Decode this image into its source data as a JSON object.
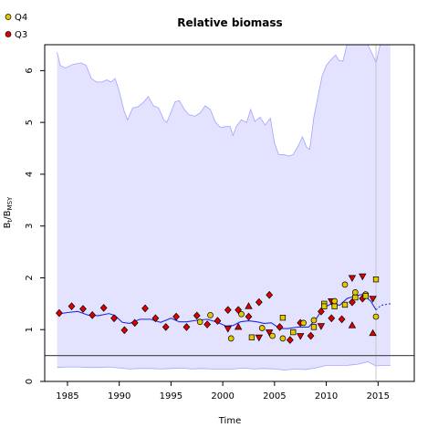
{
  "chart_data": {
    "type": "scatter",
    "title": "Relative biomass",
    "xlabel": "Time",
    "ylabel_main": "B",
    "ylabel_sub_num": "t",
    "ylabel_slash": "/B",
    "ylabel_sub_den": "MSY",
    "xlim": [
      1982.8,
      2018.5
    ],
    "ylim": [
      0,
      6.5
    ],
    "x_ticks": [
      1985,
      1990,
      1995,
      2000,
      2005,
      2010,
      2015
    ],
    "y_ticks": [
      0,
      1,
      2,
      3,
      4,
      5,
      6
    ],
    "grid": false,
    "legend_position": "top-left",
    "reference_line_y": 0.5,
    "vertical_line_x": 2014.8,
    "colors": {
      "band": "#e3e3ff",
      "band_edge": "#9fa3ff",
      "median": "#1f29e8",
      "ref_line": "#555555",
      "vline": "#c8c8c8",
      "q3": "#e00000",
      "q4": "#e6c700"
    },
    "upper_band": [
      [
        1984.0,
        6.35
      ],
      [
        1984.3,
        6.1
      ],
      [
        1984.8,
        6.05
      ],
      [
        1985.5,
        6.12
      ],
      [
        1986.3,
        6.15
      ],
      [
        1986.8,
        6.1
      ],
      [
        1987.3,
        5.85
      ],
      [
        1987.8,
        5.78
      ],
      [
        1988.3,
        5.78
      ],
      [
        1988.8,
        5.82
      ],
      [
        1989.2,
        5.78
      ],
      [
        1989.6,
        5.85
      ],
      [
        1990.0,
        5.6
      ],
      [
        1990.5,
        5.2
      ],
      [
        1990.8,
        5.05
      ],
      [
        1991.3,
        5.28
      ],
      [
        1991.8,
        5.3
      ],
      [
        1992.3,
        5.38
      ],
      [
        1992.8,
        5.5
      ],
      [
        1993.3,
        5.32
      ],
      [
        1993.8,
        5.28
      ],
      [
        1994.3,
        5.05
      ],
      [
        1994.6,
        5.0
      ],
      [
        1995.0,
        5.2
      ],
      [
        1995.4,
        5.4
      ],
      [
        1995.8,
        5.42
      ],
      [
        1996.3,
        5.25
      ],
      [
        1996.7,
        5.15
      ],
      [
        1997.3,
        5.12
      ],
      [
        1997.8,
        5.18
      ],
      [
        1998.3,
        5.32
      ],
      [
        1998.8,
        5.25
      ],
      [
        1999.3,
        5.0
      ],
      [
        1999.8,
        4.9
      ],
      [
        2000.3,
        4.92
      ],
      [
        2000.7,
        4.92
      ],
      [
        2001.0,
        4.75
      ],
      [
        2001.3,
        4.92
      ],
      [
        2001.8,
        5.05
      ],
      [
        2002.3,
        5.0
      ],
      [
        2002.7,
        5.25
      ],
      [
        2003.1,
        5.02
      ],
      [
        2003.6,
        5.1
      ],
      [
        2004.1,
        4.95
      ],
      [
        2004.6,
        5.08
      ],
      [
        2005.0,
        4.6
      ],
      [
        2005.4,
        4.38
      ],
      [
        2005.9,
        4.38
      ],
      [
        2006.4,
        4.35
      ],
      [
        2006.8,
        4.38
      ],
      [
        2007.3,
        4.55
      ],
      [
        2007.7,
        4.72
      ],
      [
        2008.1,
        4.52
      ],
      [
        2008.4,
        4.48
      ],
      [
        2008.8,
        5.1
      ],
      [
        2009.2,
        5.5
      ],
      [
        2009.6,
        5.9
      ],
      [
        2010.0,
        6.1
      ],
      [
        2010.5,
        6.22
      ],
      [
        2010.9,
        6.3
      ],
      [
        2011.2,
        6.2
      ],
      [
        2011.6,
        6.18
      ],
      [
        2012.0,
        6.5
      ],
      [
        2012.5,
        6.5
      ],
      [
        2013.0,
        6.5
      ],
      [
        2013.5,
        6.5
      ],
      [
        2014.0,
        6.5
      ],
      [
        2014.5,
        6.3
      ],
      [
        2014.8,
        6.15
      ],
      [
        2015.2,
        6.5
      ],
      [
        2016.2,
        6.5
      ]
    ],
    "lower_band": [
      [
        1984.0,
        0.27
      ],
      [
        1985.0,
        0.28
      ],
      [
        1986.0,
        0.28
      ],
      [
        1987.0,
        0.27
      ],
      [
        1988.0,
        0.27
      ],
      [
        1989.0,
        0.28
      ],
      [
        1990.0,
        0.26
      ],
      [
        1991.0,
        0.24
      ],
      [
        1992.0,
        0.25
      ],
      [
        1993.0,
        0.25
      ],
      [
        1994.0,
        0.24
      ],
      [
        1995.0,
        0.25
      ],
      [
        1996.0,
        0.26
      ],
      [
        1997.0,
        0.24
      ],
      [
        1998.0,
        0.25
      ],
      [
        1999.0,
        0.24
      ],
      [
        2000.0,
        0.24
      ],
      [
        2001.0,
        0.24
      ],
      [
        2002.0,
        0.26
      ],
      [
        2003.0,
        0.24
      ],
      [
        2004.0,
        0.25
      ],
      [
        2005.0,
        0.24
      ],
      [
        2006.0,
        0.22
      ],
      [
        2007.0,
        0.24
      ],
      [
        2008.0,
        0.23
      ],
      [
        2009.0,
        0.26
      ],
      [
        2010.0,
        0.31
      ],
      [
        2011.0,
        0.31
      ],
      [
        2012.0,
        0.31
      ],
      [
        2013.0,
        0.33
      ],
      [
        2014.0,
        0.38
      ],
      [
        2014.8,
        0.3
      ],
      [
        2015.5,
        0.31
      ],
      [
        2016.2,
        0.31
      ]
    ],
    "median": [
      [
        1984.0,
        1.3
      ],
      [
        1985.0,
        1.33
      ],
      [
        1986.0,
        1.35
      ],
      [
        1987.0,
        1.28
      ],
      [
        1988.0,
        1.27
      ],
      [
        1989.0,
        1.31
      ],
      [
        1989.6,
        1.27
      ],
      [
        1990.3,
        1.14
      ],
      [
        1991.0,
        1.12
      ],
      [
        1992.0,
        1.2
      ],
      [
        1993.0,
        1.2
      ],
      [
        1994.0,
        1.14
      ],
      [
        1995.0,
        1.22
      ],
      [
        1995.8,
        1.15
      ],
      [
        1996.5,
        1.15
      ],
      [
        1997.5,
        1.18
      ],
      [
        1998.5,
        1.2
      ],
      [
        1999.5,
        1.14
      ],
      [
        2000.3,
        1.07
      ],
      [
        2001.0,
        1.08
      ],
      [
        2001.7,
        1.15
      ],
      [
        2002.5,
        1.17
      ],
      [
        2003.3,
        1.15
      ],
      [
        2004.0,
        1.12
      ],
      [
        2004.7,
        1.13
      ],
      [
        2005.5,
        1.02
      ],
      [
        2006.3,
        1.02
      ],
      [
        2007.3,
        1.05
      ],
      [
        2008.3,
        1.05
      ],
      [
        2009.0,
        1.2
      ],
      [
        2009.7,
        1.42
      ],
      [
        2010.5,
        1.5
      ],
      [
        2011.3,
        1.47
      ],
      [
        2012.0,
        1.6
      ],
      [
        2012.8,
        1.65
      ],
      [
        2013.5,
        1.68
      ],
      [
        2014.3,
        1.55
      ],
      [
        2014.8,
        1.38
      ],
      [
        2015.3,
        1.47
      ],
      [
        2016.2,
        1.5
      ]
    ],
    "forecast_start_x": 2014.8,
    "q3_points": [
      {
        "x": 1984.2,
        "y": 1.32,
        "shape": "diamond"
      },
      {
        "x": 1985.4,
        "y": 1.45,
        "shape": "diamond"
      },
      {
        "x": 1986.5,
        "y": 1.4,
        "shape": "diamond"
      },
      {
        "x": 1987.4,
        "y": 1.28,
        "shape": "diamond"
      },
      {
        "x": 1988.5,
        "y": 1.42,
        "shape": "diamond"
      },
      {
        "x": 1989.5,
        "y": 1.22,
        "shape": "diamond"
      },
      {
        "x": 1990.5,
        "y": 0.99,
        "shape": "diamond"
      },
      {
        "x": 1991.5,
        "y": 1.13,
        "shape": "diamond"
      },
      {
        "x": 1992.5,
        "y": 1.41,
        "shape": "diamond"
      },
      {
        "x": 1993.5,
        "y": 1.22,
        "shape": "diamond"
      },
      {
        "x": 1994.5,
        "y": 1.05,
        "shape": "diamond"
      },
      {
        "x": 1995.5,
        "y": 1.25,
        "shape": "diamond"
      },
      {
        "x": 1996.5,
        "y": 1.05,
        "shape": "diamond"
      },
      {
        "x": 1997.5,
        "y": 1.27,
        "shape": "diamond"
      },
      {
        "x": 1998.5,
        "y": 1.1,
        "shape": "diamond"
      },
      {
        "x": 1999.5,
        "y": 1.17,
        "shape": "diamond"
      },
      {
        "x": 2000.5,
        "y": 1.38,
        "shape": "diamond"
      },
      {
        "x": 2001.5,
        "y": 1.38,
        "shape": "diamond"
      },
      {
        "x": 2002.5,
        "y": 1.25,
        "shape": "diamond"
      },
      {
        "x": 2003.5,
        "y": 1.53,
        "shape": "diamond"
      },
      {
        "x": 2004.5,
        "y": 1.67,
        "shape": "diamond"
      },
      {
        "x": 2005.5,
        "y": 1.05,
        "shape": "diamond"
      },
      {
        "x": 2006.5,
        "y": 0.8,
        "shape": "diamond"
      },
      {
        "x": 2007.5,
        "y": 1.13,
        "shape": "diamond"
      },
      {
        "x": 2008.5,
        "y": 0.88,
        "shape": "diamond"
      },
      {
        "x": 2009.5,
        "y": 1.35,
        "shape": "diamond"
      },
      {
        "x": 2010.5,
        "y": 1.22,
        "shape": "diamond"
      },
      {
        "x": 2011.5,
        "y": 1.2,
        "shape": "diamond"
      },
      {
        "x": 2012.5,
        "y": 1.53,
        "shape": "diamond"
      },
      {
        "x": 2013.5,
        "y": 1.6,
        "shape": "diamond"
      },
      {
        "x": 2001.5,
        "y": 1.05,
        "shape": "triangle-up"
      },
      {
        "x": 2002.5,
        "y": 1.45,
        "shape": "triangle-up"
      },
      {
        "x": 2012.5,
        "y": 1.08,
        "shape": "triangle-up"
      },
      {
        "x": 2014.5,
        "y": 0.93,
        "shape": "triangle-up"
      },
      {
        "x": 2000.5,
        "y": 1.02,
        "shape": "triangle-down"
      },
      {
        "x": 2003.5,
        "y": 0.85,
        "shape": "triangle-down"
      },
      {
        "x": 2004.5,
        "y": 0.95,
        "shape": "triangle-down"
      },
      {
        "x": 2007.5,
        "y": 0.88,
        "shape": "triangle-down"
      },
      {
        "x": 2009.5,
        "y": 1.07,
        "shape": "triangle-down"
      },
      {
        "x": 2010.5,
        "y": 1.55,
        "shape": "triangle-down"
      },
      {
        "x": 2012.5,
        "y": 2.0,
        "shape": "triangle-down"
      },
      {
        "x": 2013.5,
        "y": 2.03,
        "shape": "triangle-down"
      },
      {
        "x": 2014.5,
        "y": 1.6,
        "shape": "triangle-down"
      }
    ],
    "q4_points": [
      {
        "x": 1997.8,
        "y": 1.15,
        "shape": "circle"
      },
      {
        "x": 1998.8,
        "y": 1.28,
        "shape": "circle"
      },
      {
        "x": 2000.8,
        "y": 0.83,
        "shape": "circle"
      },
      {
        "x": 2001.8,
        "y": 1.3,
        "shape": "circle"
      },
      {
        "x": 2003.8,
        "y": 1.03,
        "shape": "circle"
      },
      {
        "x": 2004.8,
        "y": 0.88,
        "shape": "circle"
      },
      {
        "x": 2005.8,
        "y": 0.83,
        "shape": "circle"
      },
      {
        "x": 2007.8,
        "y": 1.13,
        "shape": "circle"
      },
      {
        "x": 2008.8,
        "y": 1.18,
        "shape": "circle"
      },
      {
        "x": 2010.8,
        "y": 1.55,
        "shape": "circle"
      },
      {
        "x": 2011.8,
        "y": 1.87,
        "shape": "circle"
      },
      {
        "x": 2012.8,
        "y": 1.72,
        "shape": "circle"
      },
      {
        "x": 2013.8,
        "y": 1.68,
        "shape": "circle"
      },
      {
        "x": 2014.8,
        "y": 1.25,
        "shape": "circle"
      },
      {
        "x": 2002.8,
        "y": 0.85,
        "shape": "square"
      },
      {
        "x": 2005.8,
        "y": 1.23,
        "shape": "square"
      },
      {
        "x": 2006.8,
        "y": 0.95,
        "shape": "square"
      },
      {
        "x": 2008.8,
        "y": 1.05,
        "shape": "square"
      },
      {
        "x": 2009.8,
        "y": 1.5,
        "shape": "square"
      },
      {
        "x": 2009.8,
        "y": 1.45,
        "shape": "square"
      },
      {
        "x": 2010.8,
        "y": 1.45,
        "shape": "square"
      },
      {
        "x": 2011.8,
        "y": 1.48,
        "shape": "square"
      },
      {
        "x": 2012.8,
        "y": 1.62,
        "shape": "square"
      },
      {
        "x": 2013.8,
        "y": 1.65,
        "shape": "square"
      },
      {
        "x": 2014.8,
        "y": 1.97,
        "shape": "square"
      }
    ],
    "legend": [
      {
        "label": "Q4",
        "color_key": "q4"
      },
      {
        "label": "Q3",
        "color_key": "q3"
      }
    ]
  }
}
